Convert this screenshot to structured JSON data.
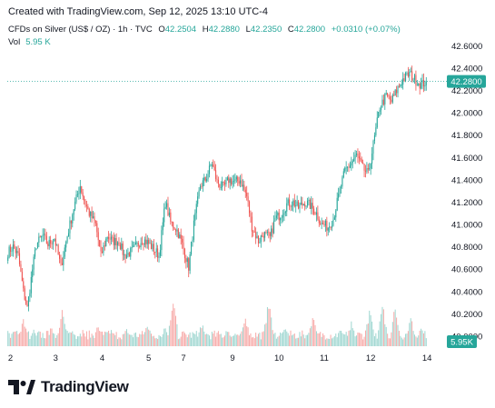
{
  "header": {
    "created": "Created with TradingView.com, Sep 12, 2025 13:10 UTC-4"
  },
  "legend": {
    "symbol": "CFDs on Silver (US$ / OZ) · 1h · TVC",
    "open_label": "O",
    "open": "42.2504",
    "high_label": "H",
    "high": "42.2880",
    "low_label": "L",
    "low": "42.2350",
    "close_label": "C",
    "close": "42.2800",
    "change": "+0.0310 (+0.07%)",
    "vol_label": "Vol",
    "vol_value": "5.95 K"
  },
  "footer": {
    "brand": "TradingView"
  },
  "colors": {
    "up": "#26a69a",
    "down": "#ef5350",
    "up_vol": "#9ed6d0",
    "down_vol": "#f7a9a7",
    "text": "#131722",
    "axis_text": "#131722"
  },
  "icons": {
    "logo": "tradingview-logo-icon"
  },
  "chart_data": {
    "type": "candlestick",
    "symbol": "CFDs on Silver (US$ / OZ)",
    "interval": "1h",
    "x_ticks": [
      "2",
      "3",
      "4",
      "5",
      "7",
      "9",
      "10",
      "11",
      "12",
      "14"
    ],
    "y_ticks": [
      "40.0000",
      "40.2000",
      "40.4000",
      "40.6000",
      "40.8000",
      "41.0000",
      "41.2000",
      "41.4000",
      "41.6000",
      "41.8000",
      "42.0000",
      "42.2000",
      "42.4000",
      "42.6000"
    ],
    "ylim": [
      40.0,
      42.7
    ],
    "last_price": "42.2800",
    "last_volume_label": "5.95K",
    "grid": false,
    "anchors": [
      [
        0,
        40.75
      ],
      [
        4,
        40.8
      ],
      [
        8,
        40.72
      ],
      [
        12,
        40.4
      ],
      [
        15,
        40.25
      ],
      [
        19,
        40.6
      ],
      [
        22,
        40.82
      ],
      [
        27,
        40.9
      ],
      [
        31,
        40.82
      ],
      [
        36,
        40.88
      ],
      [
        41,
        40.62
      ],
      [
        46,
        40.9
      ],
      [
        51,
        41.15
      ],
      [
        56,
        41.35
      ],
      [
        59,
        41.22
      ],
      [
        63,
        41.1
      ],
      [
        68,
        41.0
      ],
      [
        72,
        40.72
      ],
      [
        77,
        40.9
      ],
      [
        81,
        40.85
      ],
      [
        86,
        40.85
      ],
      [
        90,
        40.72
      ],
      [
        95,
        40.75
      ],
      [
        99,
        40.8
      ],
      [
        104,
        40.87
      ],
      [
        108,
        40.84
      ],
      [
        113,
        40.78
      ],
      [
        117,
        40.72
      ],
      [
        122,
        41.2
      ],
      [
        126,
        41.02
      ],
      [
        131,
        40.95
      ],
      [
        135,
        40.82
      ],
      [
        140,
        40.62
      ],
      [
        144,
        41.0
      ],
      [
        149,
        41.35
      ],
      [
        153,
        41.4
      ],
      [
        158,
        41.55
      ],
      [
        162,
        41.38
      ],
      [
        167,
        41.33
      ],
      [
        171,
        41.4
      ],
      [
        176,
        41.38
      ],
      [
        180,
        41.4
      ],
      [
        185,
        41.25
      ],
      [
        189,
        40.98
      ],
      [
        194,
        40.85
      ],
      [
        198,
        40.92
      ],
      [
        203,
        40.88
      ],
      [
        207,
        41.05
      ],
      [
        212,
        41.1
      ],
      [
        216,
        41.18
      ],
      [
        221,
        41.2
      ],
      [
        225,
        41.15
      ],
      [
        230,
        41.2
      ],
      [
        234,
        41.17
      ],
      [
        239,
        41.1
      ],
      [
        243,
        41.0
      ],
      [
        248,
        40.98
      ],
      [
        252,
        41.05
      ],
      [
        257,
        41.3
      ],
      [
        261,
        41.48
      ],
      [
        266,
        41.55
      ],
      [
        270,
        41.62
      ],
      [
        275,
        41.5
      ],
      [
        279,
        41.45
      ],
      [
        284,
        41.78
      ],
      [
        288,
        42.05
      ],
      [
        293,
        42.15
      ],
      [
        297,
        42.1
      ],
      [
        302,
        42.22
      ],
      [
        306,
        42.3
      ],
      [
        311,
        42.35
      ],
      [
        315,
        42.3
      ],
      [
        320,
        42.25
      ],
      [
        324,
        42.28
      ]
    ],
    "candle_count": 325,
    "volume": {
      "base": 5.95,
      "peaks": [
        [
          5,
          0.35
        ],
        [
          12,
          0.55
        ],
        [
          20,
          0.3
        ],
        [
          34,
          0.4
        ],
        [
          42,
          0.7
        ],
        [
          50,
          0.32
        ],
        [
          58,
          0.3
        ],
        [
          70,
          0.42
        ],
        [
          80,
          0.3
        ],
        [
          92,
          0.35
        ],
        [
          108,
          0.45
        ],
        [
          122,
          0.4
        ],
        [
          128,
          0.85
        ],
        [
          150,
          0.45
        ],
        [
          170,
          0.35
        ],
        [
          184,
          0.55
        ],
        [
          202,
          0.85
        ],
        [
          215,
          0.4
        ],
        [
          236,
          0.6
        ],
        [
          258,
          0.35
        ],
        [
          266,
          0.45
        ],
        [
          280,
          0.7
        ],
        [
          290,
          0.85
        ],
        [
          300,
          0.75
        ],
        [
          312,
          0.55
        ],
        [
          320,
          0.35
        ]
      ]
    }
  }
}
